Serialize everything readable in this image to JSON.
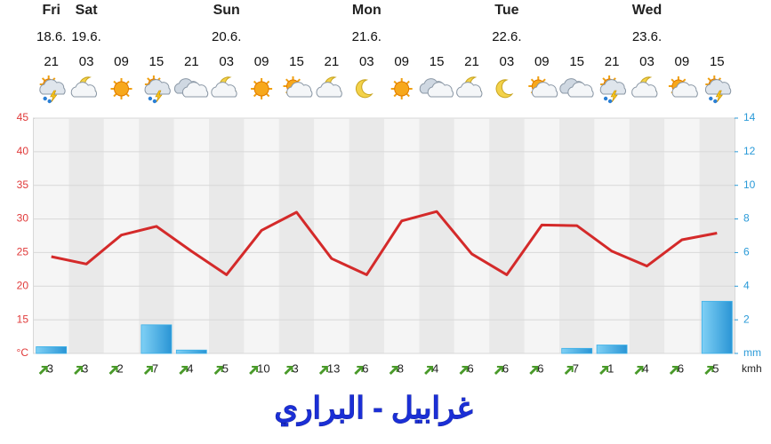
{
  "chart_data": {
    "type": "line",
    "title": "غرابيل - البراري",
    "days": [
      "Fri",
      "Sat",
      null,
      null,
      null,
      "Sun",
      null,
      null,
      null,
      "Mon",
      null,
      null,
      null,
      "Tue",
      null,
      null,
      null,
      "Wed",
      null,
      null
    ],
    "dates": [
      "18.6.",
      "19.6.",
      null,
      null,
      null,
      "20.6.",
      null,
      null,
      null,
      "21.6.",
      null,
      null,
      null,
      "22.6.",
      null,
      null,
      null,
      "23.6.",
      null,
      null
    ],
    "categories": [
      "21",
      "03",
      "09",
      "15",
      "21",
      "03",
      "09",
      "15",
      "21",
      "03",
      "09",
      "15",
      "21",
      "03",
      "09",
      "15",
      "21",
      "03",
      "09",
      "15"
    ],
    "series": [
      {
        "color": "#d42a2a",
        "values": [
          24.4,
          23.3,
          27.6,
          28.9,
          25.2,
          21.7,
          28.3,
          31.0,
          24.1,
          21.7,
          29.7,
          31.1,
          24.8,
          21.7,
          29.1,
          29.0,
          25.2,
          23.0,
          26.9,
          27.9
        ]
      },
      {
        "type": "bar",
        "axis": "y2",
        "color": "#3ab0e8",
        "values": [
          0.4,
          0,
          0,
          1.7,
          0.2,
          0,
          0,
          0,
          0,
          0,
          0,
          0,
          0,
          0,
          0,
          0.3,
          0.5,
          0,
          0,
          3.1
        ]
      }
    ],
    "wind": {
      "unit": "kmh",
      "color": "#4a9a2a",
      "values": [
        3,
        3,
        2,
        7,
        4,
        5,
        10,
        3,
        13,
        6,
        8,
        4,
        6,
        6,
        6,
        7,
        1,
        4,
        6,
        5
      ]
    },
    "ylim": [
      10,
      45
    ],
    "yticks": [
      {
        "value": 10,
        "label": "°C"
      },
      15,
      20,
      25,
      30,
      35,
      40,
      45
    ],
    "y2lim": [
      0,
      14
    ],
    "y2ticks": [
      {
        "value": 0,
        "label": "mm"
      },
      2,
      4,
      6,
      8,
      10,
      12,
      14
    ],
    "grid": true
  }
}
